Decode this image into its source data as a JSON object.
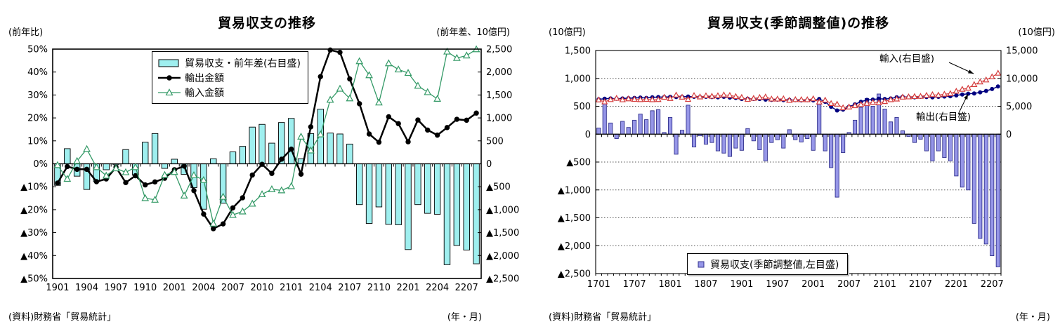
{
  "chart_data": [
    {
      "type": "bar+line",
      "title": "貿易収支の推移",
      "unit_left": "(前年比)",
      "unit_right": "(前年差、10億円)",
      "source": "(資料)財務省「貿易統計」",
      "axis_note": "(年・月)",
      "y_left": {
        "min": -50,
        "max": 50,
        "step": 10,
        "suffix": "%"
      },
      "y_right": {
        "min": -2500,
        "max": 2500,
        "step": 500
      },
      "x_label_every": 3,
      "grid": false,
      "months": [
        "1901",
        "1902",
        "1903",
        "1904",
        "1905",
        "1906",
        "1907",
        "1908",
        "1909",
        "1910",
        "1911",
        "1912",
        "2001",
        "2002",
        "2003",
        "2004",
        "2005",
        "2006",
        "2007",
        "2008",
        "2009",
        "2010",
        "2011",
        "2012",
        "2101",
        "2102",
        "2103",
        "2104",
        "2105",
        "2106",
        "2107",
        "2108",
        "2109",
        "2110",
        "2111",
        "2112",
        "2201",
        "2202",
        "2203",
        "2204",
        "2205",
        "2206",
        "2207",
        "2208"
      ],
      "series": [
        {
          "name": "貿易収支・前年差(右目盛)",
          "type": "bar",
          "axis": "right",
          "values": [
            -470,
            330,
            -270,
            -560,
            -390,
            -130,
            -20,
            310,
            -250,
            470,
            660,
            -100,
            100,
            -230,
            -520,
            -990,
            110,
            -860,
            260,
            380,
            800,
            860,
            450,
            900,
            990,
            110,
            660,
            1190,
            670,
            650,
            430,
            -890,
            -1300,
            -940,
            -1320,
            -1330,
            -1870,
            -890,
            -1080,
            -1100,
            -2200,
            -1780,
            -1880,
            -2180
          ]
        },
        {
          "name": "輸出金額",
          "type": "line",
          "marker": "circle",
          "axis": "left",
          "values": [
            -8.4,
            -1.2,
            -2.4,
            -2.4,
            -7.8,
            -6.6,
            -1.5,
            -8.2,
            -5.2,
            -9.2,
            -7.9,
            -6.3,
            -2.6,
            -1.0,
            -11.7,
            -21.9,
            -28.3,
            -26.2,
            -19.2,
            -14.8,
            -4.9,
            -0.2,
            -4.2,
            2.0,
            6.4,
            -4.5,
            16.1,
            38.0,
            49.6,
            48.6,
            37.0,
            26.2,
            13.0,
            9.4,
            20.5,
            17.5,
            9.6,
            19.1,
            14.7,
            12.5,
            15.8,
            19.4,
            19.0,
            22.1
          ]
        },
        {
          "name": "輸入金額",
          "type": "line",
          "marker": "triangle",
          "axis": "left",
          "values": [
            -0.6,
            -6.6,
            1.2,
            6.4,
            -1.5,
            -5.2,
            -2.0,
            -3.7,
            -1.5,
            -15.0,
            -15.7,
            -4.9,
            -3.6,
            -13.9,
            -5.0,
            -7.1,
            -26.1,
            -14.4,
            -22.3,
            -20.8,
            -17.4,
            -13.3,
            -11.1,
            -11.6,
            -9.8,
            11.8,
            5.8,
            12.8,
            27.9,
            32.7,
            28.5,
            44.7,
            38.6,
            26.7,
            43.8,
            41.1,
            39.6,
            34.0,
            31.2,
            28.3,
            48.9,
            46.1,
            47.2,
            49.9
          ]
        }
      ],
      "legend": [
        {
          "swatch": "bar",
          "label": "貿易収支・前年差(右目盛)"
        },
        {
          "swatch": "line-circle",
          "label": "輸出金額"
        },
        {
          "swatch": "line-triangle",
          "label": "輸入金額"
        }
      ],
      "colors": {
        "bar_fill": "#9FEFEF",
        "bar_stroke": "#000000",
        "export": "#000000",
        "import": "#339966"
      }
    },
    {
      "type": "bar+line",
      "title": "貿易収支(季節調整値)の推移",
      "unit_left": "(10億円)",
      "unit_right": "(10億円)",
      "source": "(資料)財務省「貿易統計」",
      "axis_note": "(年・月)",
      "y_left": {
        "min": -2500,
        "max": 1500,
        "step": 500,
        "suffix": ""
      },
      "y_right": {
        "min": 0,
        "max": 15000,
        "step": 5000
      },
      "x_label_every": 6,
      "grid": true,
      "months": [
        "1701",
        "1702",
        "1703",
        "1704",
        "1705",
        "1706",
        "1707",
        "1708",
        "1709",
        "1710",
        "1711",
        "1712",
        "1801",
        "1802",
        "1803",
        "1804",
        "1805",
        "1806",
        "1807",
        "1808",
        "1809",
        "1810",
        "1811",
        "1812",
        "1901",
        "1902",
        "1903",
        "1904",
        "1905",
        "1906",
        "1907",
        "1908",
        "1909",
        "1910",
        "1911",
        "1912",
        "2001",
        "2002",
        "2003",
        "2004",
        "2005",
        "2006",
        "2007",
        "2008",
        "2009",
        "2010",
        "2011",
        "2012",
        "2101",
        "2102",
        "2103",
        "2104",
        "2105",
        "2106",
        "2107",
        "2108",
        "2109",
        "2110",
        "2111",
        "2112",
        "2201",
        "2202",
        "2203",
        "2204",
        "2205",
        "2206",
        "2207",
        "2208"
      ],
      "series": [
        {
          "name": "貿易収支(季節調整値,左目盛)",
          "type": "bar",
          "axis": "left",
          "values": [
            110,
            560,
            200,
            -80,
            230,
            120,
            250,
            360,
            260,
            420,
            440,
            30,
            300,
            -360,
            70,
            520,
            -230,
            -30,
            -180,
            -150,
            -300,
            -340,
            -400,
            -250,
            -290,
            100,
            -120,
            -280,
            -480,
            -150,
            -100,
            -250,
            80,
            -100,
            -140,
            -80,
            -290,
            540,
            -300,
            -600,
            -1130,
            -330,
            30,
            250,
            480,
            640,
            500,
            720,
            450,
            220,
            300,
            60,
            -40,
            -150,
            -90,
            -300,
            -480,
            -300,
            -420,
            -480,
            -750,
            -950,
            -1000,
            -1600,
            -1870,
            -1970,
            -2180,
            -2380
          ]
        },
        {
          "name": "輸出(右目盛)",
          "type": "line",
          "marker": "circle",
          "axis": "right",
          "values": [
            6250,
            6350,
            6400,
            6350,
            6400,
            6450,
            6500,
            6550,
            6500,
            6600,
            6650,
            6650,
            6700,
            6650,
            6700,
            6750,
            6700,
            6650,
            6700,
            6650,
            6600,
            6700,
            6550,
            6500,
            6300,
            6350,
            6300,
            6300,
            6200,
            6150,
            6200,
            6100,
            6150,
            6100,
            6050,
            6100,
            6050,
            6300,
            5800,
            4900,
            4250,
            4400,
            4900,
            5350,
            5800,
            6150,
            6200,
            6350,
            6300,
            6400,
            6600,
            6700,
            6650,
            6600,
            6700,
            6650,
            6600,
            6700,
            6750,
            6800,
            6950,
            7100,
            7250,
            7300,
            7500,
            7750,
            8100,
            8550
          ]
        },
        {
          "name": "輸入(右目盛)",
          "type": "line",
          "marker": "triangle",
          "axis": "right",
          "values": [
            6140,
            5790,
            6200,
            6430,
            6170,
            6330,
            6250,
            6190,
            6240,
            6180,
            6210,
            6620,
            6400,
            7010,
            6630,
            6230,
            6930,
            6680,
            6880,
            6800,
            6900,
            7040,
            6950,
            6750,
            6590,
            6250,
            6420,
            6580,
            6680,
            6300,
            6300,
            6350,
            6070,
            6200,
            6190,
            6180,
            6340,
            5760,
            6100,
            5500,
            5380,
            4730,
            4870,
            5100,
            5320,
            5510,
            5700,
            5630,
            5850,
            6180,
            6300,
            6640,
            6690,
            6750,
            6790,
            6950,
            7080,
            7000,
            7170,
            7280,
            7700,
            8050,
            8250,
            8900,
            9370,
            9720,
            10280,
            10930
          ]
        }
      ],
      "legend": [
        {
          "swatch": "square",
          "label": "貿易収支(季節調整値,左目盛)"
        }
      ],
      "annotations": [
        {
          "text": "輸入(右目盛)"
        },
        {
          "text": "輸出(右目盛)"
        }
      ],
      "colors": {
        "bar_fill": "#9696E8",
        "bar_stroke": "#30308C",
        "export": "#000080",
        "import": "#D43C3C"
      }
    }
  ]
}
